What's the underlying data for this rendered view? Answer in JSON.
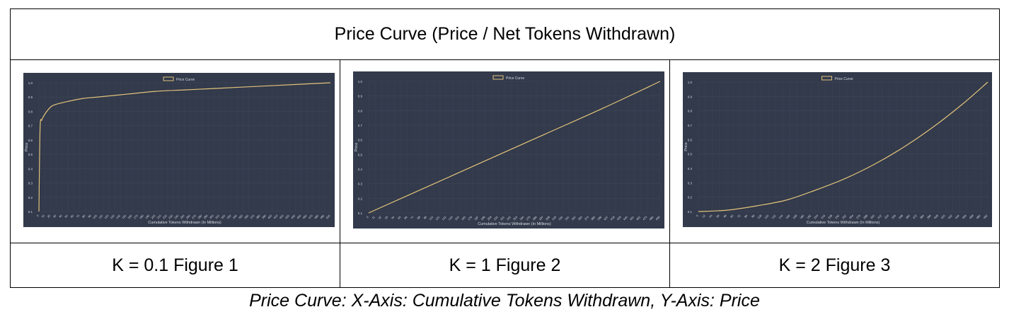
{
  "table_title": "Price Curve (Price / Net Tokens Withdrawn)",
  "captions": [
    "K = 0.1 Figure 1",
    "K = 1 Figure 2",
    "K = 2 Figure 3"
  ],
  "footer": "Price Curve: X-Axis: Cumulative Tokens Withdrawn, Y-Axis: Price",
  "colors": {
    "chart_bg": "#323a4b",
    "line": "#e3c27a",
    "grid": "#3e4659",
    "text": "#d7dbe2"
  },
  "chart_data": [
    {
      "type": "line",
      "legend": "Price Curve",
      "legend_position": "top-center",
      "xlabel": "Cumulative Tokens Withdrawn (In Millions)",
      "ylabel": "Price",
      "ylim": [
        0.1,
        1.0
      ],
      "yticks": [
        "0.1",
        "0.2",
        "0.3",
        "0.4",
        "0.5",
        "0.6",
        "0.7",
        "0.8",
        "0.9",
        "1.0"
      ],
      "xticks": [
        "0",
        "10",
        "20",
        "30",
        "40",
        "50",
        "60",
        "70",
        "80",
        "90",
        "100",
        "110",
        "120",
        "130",
        "140",
        "150",
        "160",
        "170",
        "180",
        "190",
        "200",
        "210",
        "220",
        "230",
        "240",
        "250",
        "260",
        "270",
        "280",
        "290",
        "300",
        "310",
        "320",
        "330",
        "340",
        "350",
        "360",
        "370",
        "380",
        "390",
        "400",
        "410",
        "420",
        "430",
        "440",
        "450",
        "460",
        "470",
        "480",
        "490",
        "500"
      ],
      "grid": true,
      "series": [
        {
          "name": "Price Curve",
          "x": [
            0,
            2,
            5,
            10,
            20,
            30,
            50,
            75,
            100,
            150,
            200,
            250,
            300,
            350,
            400,
            450,
            500
          ],
          "y": [
            0.1,
            0.68,
            0.74,
            0.78,
            0.83,
            0.85,
            0.87,
            0.89,
            0.9,
            0.92,
            0.94,
            0.95,
            0.96,
            0.97,
            0.98,
            0.99,
            1.0
          ]
        }
      ]
    },
    {
      "type": "line",
      "legend": "Price Curve",
      "legend_position": "top-center",
      "xlabel": "Cumulative Tokens Withdrawn (In Millions)",
      "ylabel": "Price",
      "ylim": [
        0.1,
        1.0
      ],
      "yticks": [
        "0.1",
        "0.2",
        "0.3",
        "0.4",
        "0.5",
        "0.6",
        "0.7",
        "0.8",
        "0.9",
        "1.0"
      ],
      "xticks": [
        "0",
        "11",
        "22",
        "33",
        "44",
        "55",
        "66",
        "77",
        "88",
        "99",
        "110",
        "121",
        "132",
        "143",
        "154",
        "165",
        "176",
        "187",
        "198",
        "209",
        "220",
        "231",
        "242",
        "253",
        "264",
        "275",
        "286",
        "297",
        "308",
        "319",
        "330",
        "341",
        "352",
        "363",
        "374",
        "385",
        "396",
        "407",
        "418",
        "429",
        "440",
        "451",
        "462",
        "473",
        "484",
        "495"
      ],
      "grid": true,
      "series": [
        {
          "name": "Price Curve",
          "x": [
            0,
            100,
            200,
            300,
            400,
            495
          ],
          "y": [
            0.1,
            0.28,
            0.46,
            0.64,
            0.82,
            1.0
          ]
        }
      ]
    },
    {
      "type": "line",
      "legend": "Price Curve",
      "legend_position": "top-center",
      "xlabel": "Cumulative Tokens Withdrawn (In Millions)",
      "ylabel": "Price",
      "ylim": [
        0.1,
        1.0
      ],
      "yticks": [
        "0.1",
        "0.2",
        "0.3",
        "0.4",
        "0.5",
        "0.6",
        "0.7",
        "0.8",
        "0.9",
        "1.0"
      ],
      "xticks": [
        "0",
        "12",
        "24",
        "36",
        "48",
        "60",
        "72",
        "84",
        "96",
        "108",
        "120",
        "132",
        "144",
        "156",
        "168",
        "180",
        "192",
        "204",
        "216",
        "228",
        "240",
        "252",
        "264",
        "276",
        "288",
        "300",
        "312",
        "324",
        "336",
        "348",
        "360",
        "372",
        "384",
        "396",
        "408",
        "420",
        "432",
        "444",
        "456",
        "468",
        "480",
        "492"
      ],
      "grid": true,
      "series": [
        {
          "name": "Price Curve",
          "x": [
            0,
            50,
            100,
            150,
            200,
            250,
            300,
            350,
            400,
            450,
            492
          ],
          "y": [
            0.1,
            0.11,
            0.14,
            0.18,
            0.25,
            0.33,
            0.43,
            0.55,
            0.69,
            0.85,
            1.0
          ]
        }
      ]
    }
  ]
}
